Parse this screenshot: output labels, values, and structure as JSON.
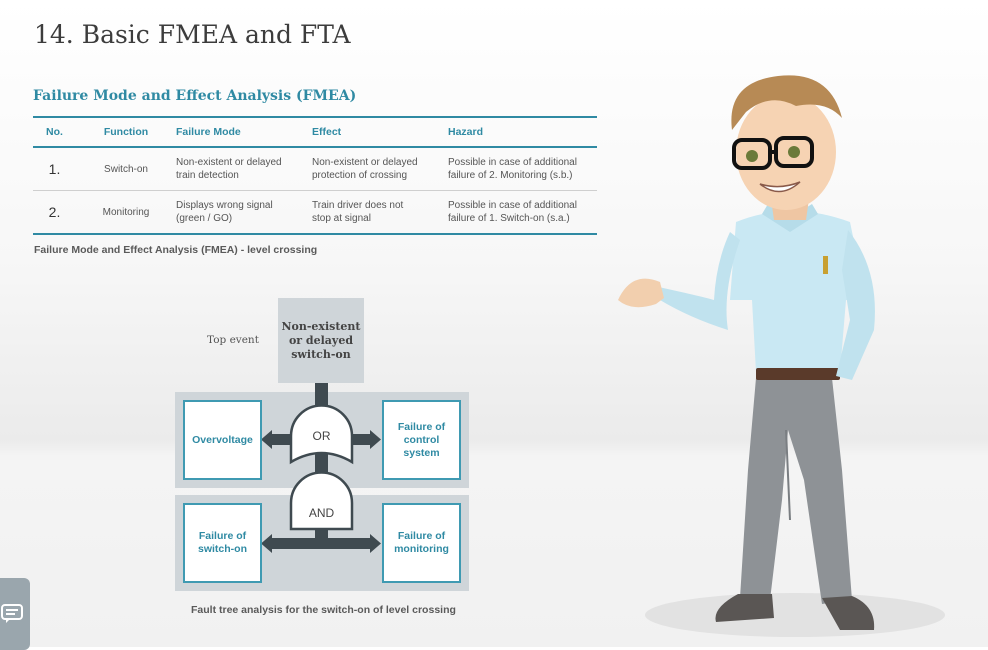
{
  "page": {
    "title": "14. Basic FMEA and FTA"
  },
  "fmea": {
    "section_title": "Failure Mode and Effect Analysis (FMEA)",
    "headers": {
      "no": "No.",
      "function": "Function",
      "failure_mode": "Failure Mode",
      "effect": "Effect",
      "hazard": "Hazard"
    },
    "rows": [
      {
        "no": "1.",
        "function": "Switch-on",
        "failure_mode": "Non-existent or delayed train detection",
        "effect": "Non-existent or delayed protection of crossing",
        "hazard": "Possible in case of additional failure of 2. Monitoring (s.b.)"
      },
      {
        "no": "2.",
        "function": "Monitoring",
        "failure_mode": "Displays wrong signal (green / GO)",
        "effect": "Train driver does not stop at signal",
        "hazard": "Possible in case of additional failure of 1. Switch-on (s.a.)"
      }
    ],
    "caption": "Failure Mode and Effect Analysis (FMEA) - level crossing"
  },
  "fta": {
    "top_event_label": "Top event",
    "top_event": "Non-existent or delayed switch-on",
    "or_gate": "OR",
    "and_gate": "AND",
    "overvoltage": "Overvoltage",
    "control_failure": "Failure of control system",
    "switch_on_failure": "Failure of switch-on",
    "monitoring_failure": "Failure of monitoring",
    "caption": "Fault tree analysis for the switch-on of level crossing"
  },
  "colors": {
    "accent": "#2f8aa3",
    "panel": "#cfd5d9",
    "gate": "#3f4a50"
  },
  "icons": {
    "chat": "chat-bubble-icon",
    "presenter": "presenter-character"
  }
}
